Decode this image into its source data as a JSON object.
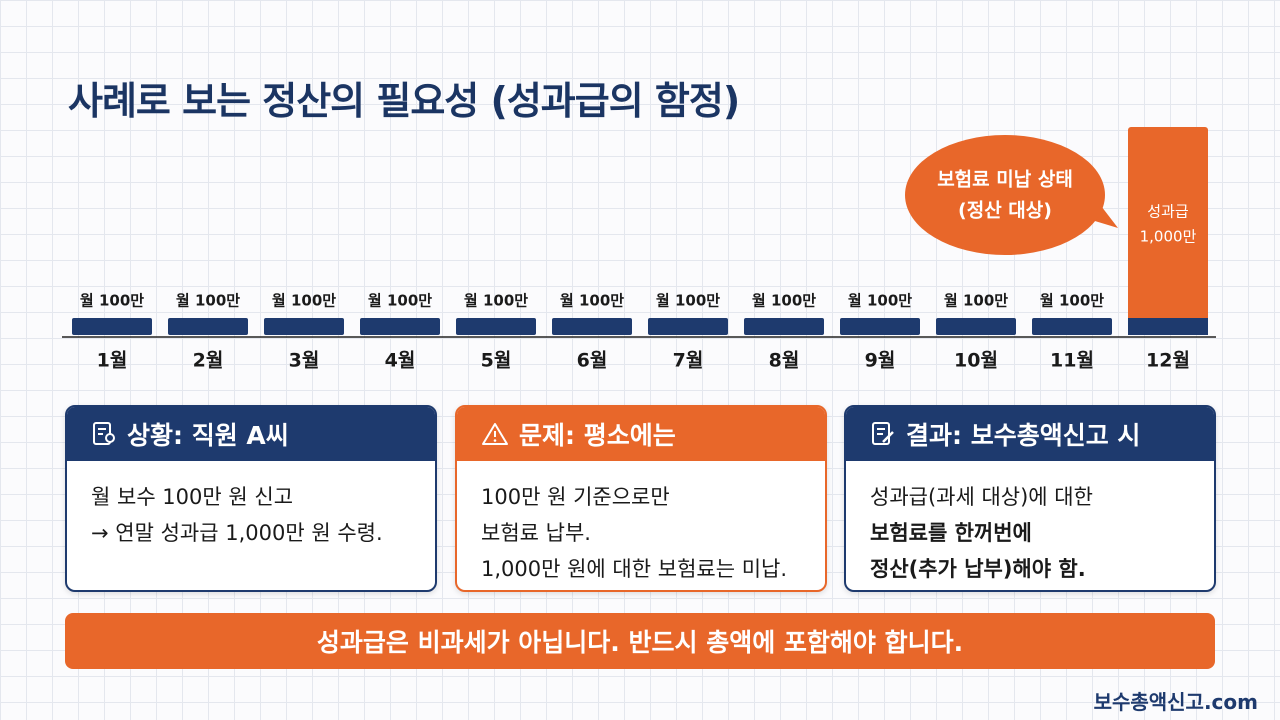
{
  "title": "사례로 보는 정산의 필요성 (성과급의 함정)",
  "timeline": {
    "months": [
      {
        "label": "1월",
        "amount": [
          "월 100만"
        ]
      },
      {
        "label": "2월",
        "amount": [
          "월 100만"
        ]
      },
      {
        "label": "3월",
        "amount": [
          "월 100만"
        ]
      },
      {
        "label": "4월",
        "amount": [
          "월 100만"
        ]
      },
      {
        "label": "5월",
        "amount": [
          "월 100만"
        ]
      },
      {
        "label": "6월",
        "amount": [
          "월 100만"
        ]
      },
      {
        "label": "7월",
        "amount": [
          "월 100만"
        ]
      },
      {
        "label": "8월",
        "amount": [
          "월 100만"
        ]
      },
      {
        "label": "9월",
        "amount": [
          "월 100만"
        ]
      },
      {
        "label": "10월",
        "amount": [
          "월 100만"
        ]
      },
      {
        "label": "11월",
        "amount": [
          "월 100만"
        ]
      },
      {
        "label": "12월",
        "amount": [
          "성과급",
          "1,000만"
        ]
      }
    ],
    "callout": [
      "보험료 미납 상태",
      "(정산 대상)"
    ]
  },
  "cards": [
    {
      "title": "상황: 직원 A씨",
      "lines": [
        "월 보수 100만 원 신고",
        "→ 연말 성과급 1,000만 원 수령."
      ]
    },
    {
      "title": "문제: 평소에는",
      "lines": [
        "100만 원 기준으로만",
        "보험료 납부.",
        "1,000만 원에 대한 보험료는 미납."
      ]
    },
    {
      "title": "결과: 보수총액신고 시",
      "lines": [
        "성과급(과세 대상)에 대한",
        "보험료를 한꺼번에",
        "정산(추가 납부)해야 함."
      ]
    }
  ],
  "banner": "성과급은 비과세가 아닙니다. 반드시 총액에 포함해야 합니다.",
  "footer": "보수총액신고.com"
}
